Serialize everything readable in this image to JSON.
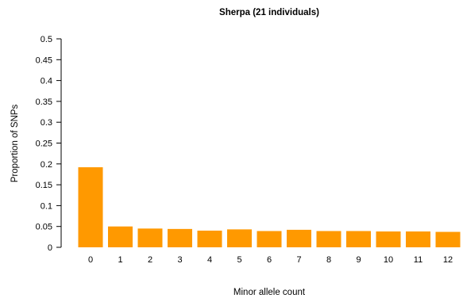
{
  "chart_data": {
    "type": "bar",
    "title": "Sherpa (21 individuals)",
    "xlabel": "Minor allele count",
    "ylabel": "Proportion of SNPs",
    "categories": [
      "0",
      "1",
      "2",
      "3",
      "4",
      "5",
      "6",
      "7",
      "8",
      "9",
      "10",
      "11",
      "12"
    ],
    "values": [
      0.192,
      0.05,
      0.045,
      0.044,
      0.04,
      0.043,
      0.039,
      0.042,
      0.039,
      0.039,
      0.038,
      0.038,
      0.037
    ],
    "ylim": [
      0,
      0.5
    ],
    "yticks": [
      0,
      0.05,
      0.1,
      0.15,
      0.2,
      0.25,
      0.3,
      0.35,
      0.4,
      0.45,
      0.5
    ],
    "ytick_labels": [
      "0",
      "0.05",
      "0.1",
      "0.15",
      "0.2",
      "0.25",
      "0.3",
      "0.35",
      "0.4",
      "0.45",
      "0.5"
    ],
    "grid": false,
    "legend": "none",
    "bar_color": "#FF9900"
  }
}
